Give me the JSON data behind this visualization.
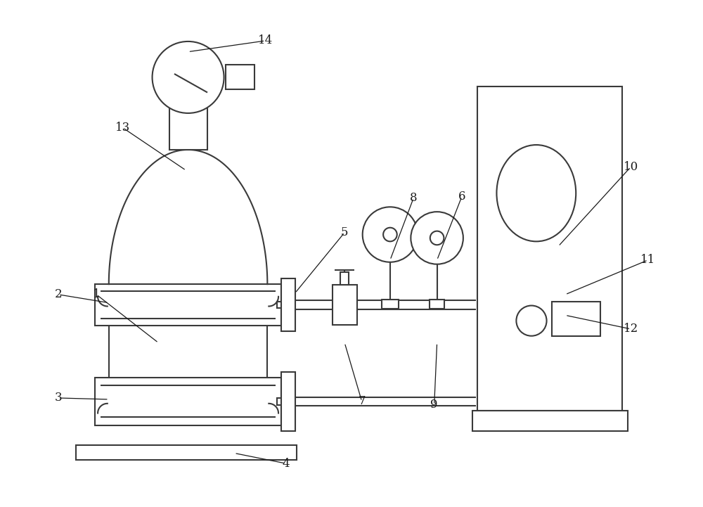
{
  "bg_color": "#ffffff",
  "line_color": "#3a3a3a",
  "lw": 1.5,
  "fig_width": 10.0,
  "fig_height": 7.21,
  "label_fontsize": 12,
  "label_color": "#1a1a1a",
  "leader_lw": 0.9
}
